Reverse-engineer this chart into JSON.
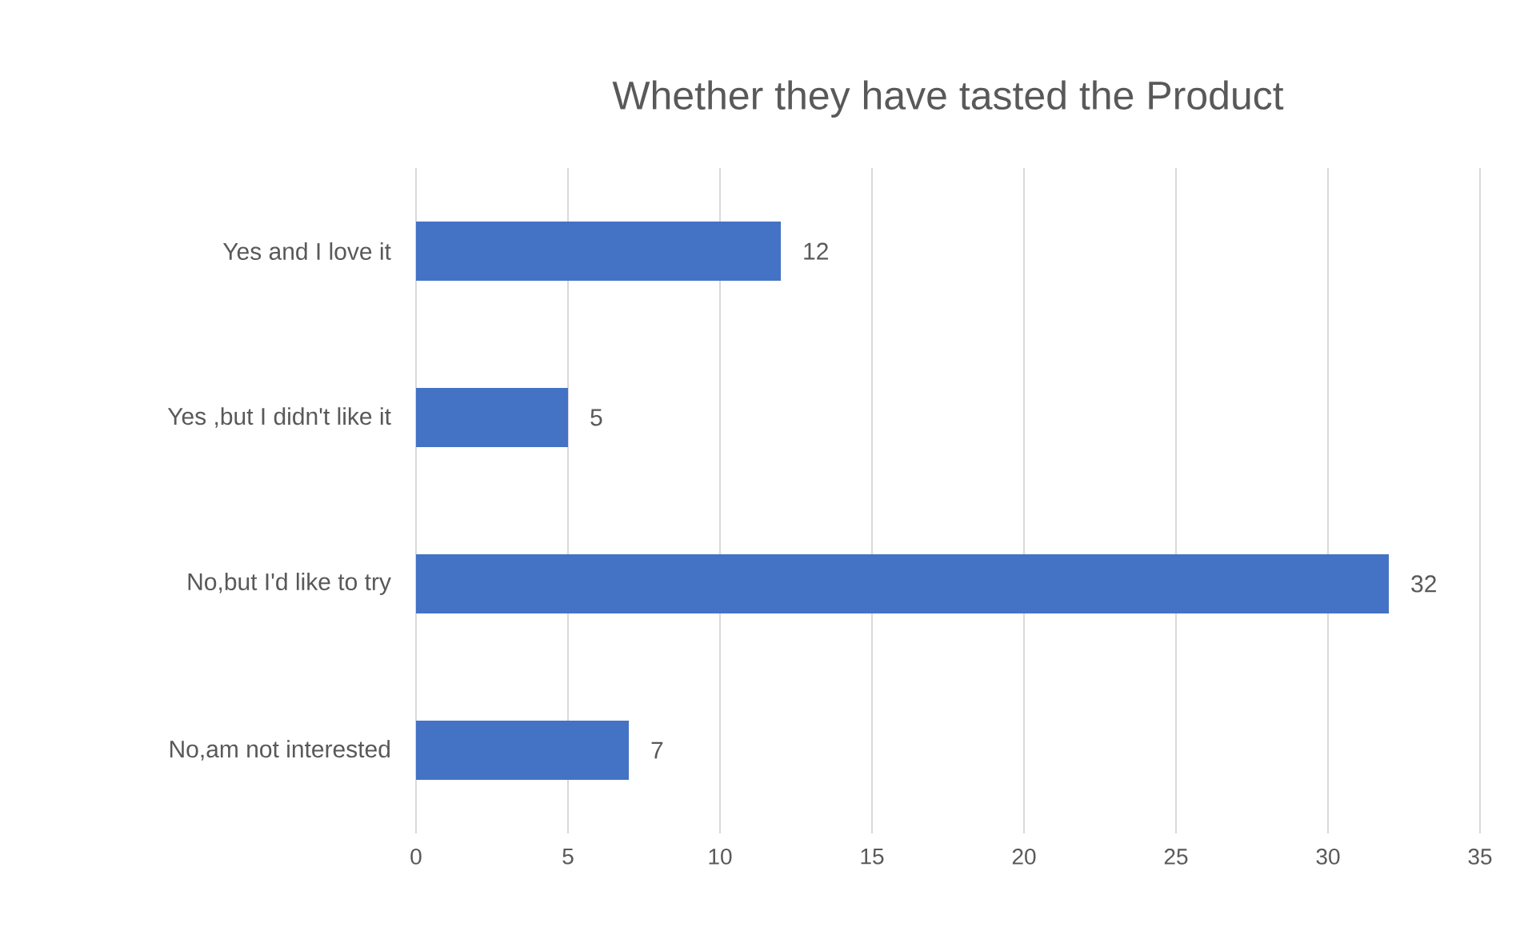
{
  "chart_data": {
    "type": "bar",
    "orientation": "horizontal",
    "title": "Whether they have tasted the Product",
    "categories": [
      "Yes and I love it",
      "Yes ,but I didn't like it",
      "No,but I'd like to try",
      "No,am not interested"
    ],
    "values": [
      12,
      5,
      32,
      7
    ],
    "color": "#4472c4",
    "xlim": [
      0,
      35
    ],
    "xticks": [
      0,
      5,
      10,
      15,
      20,
      25,
      30,
      35
    ],
    "grid": "x",
    "data_labels": true
  }
}
